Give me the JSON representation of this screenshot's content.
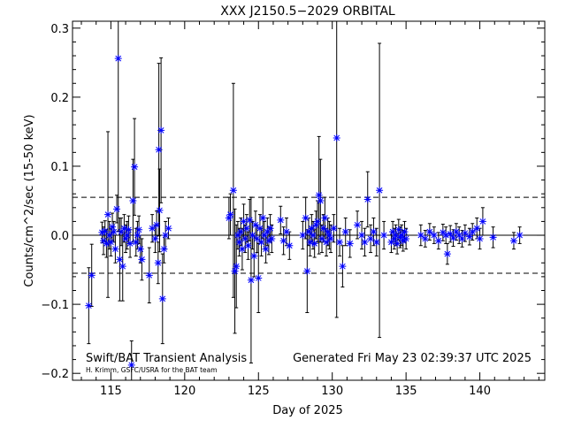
{
  "chart_data": {
    "type": "scatter",
    "title": "XXX J2150.5−2029 ORBITAL",
    "xlabel": "Day of 2025",
    "ylabel": "Counts/cm^2/sec (15-50 keV)",
    "xlim": [
      112.4,
      144.4
    ],
    "ylim": [
      -0.21,
      0.31
    ],
    "x_ticks": [
      115,
      120,
      125,
      130,
      135,
      140
    ],
    "y_ticks": [
      -0.2,
      -0.1,
      0.0,
      0.1,
      0.2,
      0.3
    ],
    "y_tick_labels": [
      "−0.2",
      "−0.1",
      "0.0",
      "0.1",
      "0.2",
      "0.3"
    ],
    "zero_line": 0.0,
    "threshold_lines": [
      0.055,
      -0.055
    ],
    "marker_color": "#0000ff",
    "errorbar_color": "#000000",
    "annotations": {
      "left": "Swift/BAT Transient Analysis",
      "credit": "H. Krimm, GSFC/USRA for the BAT team",
      "generated": "Generated Fri May 23 02:39:37 UTC 2025"
    },
    "series": [
      {
        "points": [
          {
            "x": 113.5,
            "y": -0.102,
            "err": 0.055
          },
          {
            "x": 113.7,
            "y": -0.058,
            "err": 0.045
          },
          {
            "x": 114.4,
            "y": 0.004,
            "err": 0.015
          },
          {
            "x": 114.5,
            "y": -0.008,
            "err": 0.02
          },
          {
            "x": 114.6,
            "y": 0.006,
            "err": 0.015
          },
          {
            "x": 114.7,
            "y": -0.012,
            "err": 0.02
          },
          {
            "x": 114.8,
            "y": 0.03,
            "err": 0.12
          },
          {
            "x": 114.9,
            "y": 0.0,
            "err": 0.02
          },
          {
            "x": 115.0,
            "y": -0.01,
            "err": 0.02
          },
          {
            "x": 115.1,
            "y": 0.012,
            "err": 0.02
          },
          {
            "x": 115.2,
            "y": 0.005,
            "err": 0.015
          },
          {
            "x": 115.3,
            "y": -0.02,
            "err": 0.02
          },
          {
            "x": 115.4,
            "y": 0.038,
            "err": 0.02
          },
          {
            "x": 115.5,
            "y": 0.256,
            "err": 0.25
          },
          {
            "x": 115.6,
            "y": -0.035,
            "err": 0.06
          },
          {
            "x": 115.7,
            "y": 0.005,
            "err": 0.02
          },
          {
            "x": 115.8,
            "y": -0.045,
            "err": 0.05
          },
          {
            "x": 115.9,
            "y": 0.01,
            "err": 0.02
          },
          {
            "x": 116.0,
            "y": -0.005,
            "err": 0.02
          },
          {
            "x": 116.1,
            "y": 0.0,
            "err": 0.02
          },
          {
            "x": 116.2,
            "y": 0.008,
            "err": 0.02
          },
          {
            "x": 116.3,
            "y": -0.012,
            "err": 0.02
          },
          {
            "x": 116.4,
            "y": -0.188,
            "err": 0.035
          },
          {
            "x": 116.5,
            "y": 0.05,
            "err": 0.06
          },
          {
            "x": 116.6,
            "y": 0.099,
            "err": 0.07
          },
          {
            "x": 116.7,
            "y": -0.01,
            "err": 0.02
          },
          {
            "x": 116.8,
            "y": 0.0,
            "err": 0.02
          },
          {
            "x": 116.9,
            "y": 0.008,
            "err": 0.02
          },
          {
            "x": 117.0,
            "y": -0.02,
            "err": 0.02
          },
          {
            "x": 117.1,
            "y": -0.035,
            "err": 0.03
          },
          {
            "x": 117.6,
            "y": -0.058,
            "err": 0.04
          },
          {
            "x": 117.8,
            "y": 0.01,
            "err": 0.02
          },
          {
            "x": 118.0,
            "y": -0.005,
            "err": 0.02
          },
          {
            "x": 118.1,
            "y": 0.015,
            "err": 0.02
          },
          {
            "x": 118.2,
            "y": -0.04,
            "err": 0.03
          },
          {
            "x": 118.25,
            "y": 0.124,
            "err": 0.125
          },
          {
            "x": 118.3,
            "y": 0.036,
            "err": 0.06
          },
          {
            "x": 118.4,
            "y": 0.152,
            "err": 0.105
          },
          {
            "x": 118.5,
            "y": -0.092,
            "err": 0.065
          },
          {
            "x": 118.6,
            "y": -0.02,
            "err": 0.02
          },
          {
            "x": 118.7,
            "y": 0.0,
            "err": 0.02
          },
          {
            "x": 118.9,
            "y": 0.01,
            "err": 0.015
          },
          {
            "x": 123.0,
            "y": 0.025,
            "err": 0.03
          },
          {
            "x": 123.1,
            "y": 0.03,
            "err": 0.03
          },
          {
            "x": 123.3,
            "y": 0.065,
            "err": 0.155
          },
          {
            "x": 123.4,
            "y": -0.052,
            "err": 0.09
          },
          {
            "x": 123.5,
            "y": -0.045,
            "err": 0.06
          },
          {
            "x": 123.6,
            "y": 0.0,
            "err": 0.02
          },
          {
            "x": 123.7,
            "y": -0.01,
            "err": 0.02
          },
          {
            "x": 123.8,
            "y": 0.005,
            "err": 0.02
          },
          {
            "x": 123.9,
            "y": -0.02,
            "err": 0.03
          },
          {
            "x": 124.0,
            "y": 0.02,
            "err": 0.025
          },
          {
            "x": 124.1,
            "y": -0.005,
            "err": 0.02
          },
          {
            "x": 124.2,
            "y": 0.01,
            "err": 0.02
          },
          {
            "x": 124.3,
            "y": -0.015,
            "err": 0.02
          },
          {
            "x": 124.4,
            "y": 0.022,
            "err": 0.03
          },
          {
            "x": 124.5,
            "y": -0.065,
            "err": 0.12
          },
          {
            "x": 124.6,
            "y": 0.0,
            "err": 0.02
          },
          {
            "x": 124.7,
            "y": -0.03,
            "err": 0.03
          },
          {
            "x": 124.8,
            "y": 0.015,
            "err": 0.02
          },
          {
            "x": 124.9,
            "y": -0.005,
            "err": 0.02
          },
          {
            "x": 125.0,
            "y": -0.062,
            "err": 0.05
          },
          {
            "x": 125.1,
            "y": 0.01,
            "err": 0.02
          },
          {
            "x": 125.2,
            "y": -0.01,
            "err": 0.02
          },
          {
            "x": 125.3,
            "y": 0.025,
            "err": 0.03
          },
          {
            "x": 125.4,
            "y": 0.0,
            "err": 0.02
          },
          {
            "x": 125.5,
            "y": -0.02,
            "err": 0.02
          },
          {
            "x": 125.6,
            "y": 0.005,
            "err": 0.02
          },
          {
            "x": 125.7,
            "y": -0.008,
            "err": 0.02
          },
          {
            "x": 125.8,
            "y": 0.01,
            "err": 0.02
          },
          {
            "x": 125.9,
            "y": -0.005,
            "err": 0.02
          },
          {
            "x": 126.5,
            "y": 0.022,
            "err": 0.02
          },
          {
            "x": 126.7,
            "y": -0.008,
            "err": 0.02
          },
          {
            "x": 126.9,
            "y": 0.005,
            "err": 0.02
          },
          {
            "x": 127.1,
            "y": -0.015,
            "err": 0.02
          },
          {
            "x": 128.0,
            "y": 0.0,
            "err": 0.02
          },
          {
            "x": 128.2,
            "y": 0.025,
            "err": 0.03
          },
          {
            "x": 128.3,
            "y": -0.052,
            "err": 0.06
          },
          {
            "x": 128.4,
            "y": 0.005,
            "err": 0.02
          },
          {
            "x": 128.5,
            "y": -0.01,
            "err": 0.02
          },
          {
            "x": 128.6,
            "y": 0.01,
            "err": 0.02
          },
          {
            "x": 128.7,
            "y": 0.0,
            "err": 0.02
          },
          {
            "x": 128.8,
            "y": -0.012,
            "err": 0.02
          },
          {
            "x": 128.9,
            "y": 0.015,
            "err": 0.02
          },
          {
            "x": 129.0,
            "y": 0.02,
            "err": 0.03
          },
          {
            "x": 129.1,
            "y": 0.058,
            "err": 0.085
          },
          {
            "x": 129.2,
            "y": 0.05,
            "err": 0.06
          },
          {
            "x": 129.3,
            "y": -0.005,
            "err": 0.02
          },
          {
            "x": 129.4,
            "y": 0.01,
            "err": 0.02
          },
          {
            "x": 129.5,
            "y": 0.025,
            "err": 0.03
          },
          {
            "x": 129.6,
            "y": -0.01,
            "err": 0.02
          },
          {
            "x": 129.7,
            "y": 0.005,
            "err": 0.02
          },
          {
            "x": 129.8,
            "y": 0.0,
            "err": 0.02
          },
          {
            "x": 129.9,
            "y": -0.005,
            "err": 0.02
          },
          {
            "x": 130.1,
            "y": 0.01,
            "err": 0.02
          },
          {
            "x": 130.3,
            "y": 0.141,
            "err": 0.26
          },
          {
            "x": 130.5,
            "y": -0.01,
            "err": 0.02
          },
          {
            "x": 130.7,
            "y": -0.045,
            "err": 0.03
          },
          {
            "x": 130.9,
            "y": 0.005,
            "err": 0.02
          },
          {
            "x": 131.2,
            "y": -0.012,
            "err": 0.02
          },
          {
            "x": 131.7,
            "y": 0.015,
            "err": 0.02
          },
          {
            "x": 132.0,
            "y": 0.0,
            "err": 0.02
          },
          {
            "x": 132.2,
            "y": -0.01,
            "err": 0.02
          },
          {
            "x": 132.4,
            "y": 0.052,
            "err": 0.04
          },
          {
            "x": 132.6,
            "y": -0.005,
            "err": 0.02
          },
          {
            "x": 132.8,
            "y": 0.005,
            "err": 0.02
          },
          {
            "x": 133.0,
            "y": -0.01,
            "err": 0.02
          },
          {
            "x": 133.2,
            "y": 0.065,
            "err": 0.213
          },
          {
            "x": 133.5,
            "y": 0.0,
            "err": 0.02
          },
          {
            "x": 134.0,
            "y": -0.01,
            "err": 0.015
          },
          {
            "x": 134.1,
            "y": 0.005,
            "err": 0.015
          },
          {
            "x": 134.2,
            "y": -0.005,
            "err": 0.015
          },
          {
            "x": 134.3,
            "y": 0.0,
            "err": 0.015
          },
          {
            "x": 134.4,
            "y": -0.012,
            "err": 0.015
          },
          {
            "x": 134.5,
            "y": 0.008,
            "err": 0.015
          },
          {
            "x": 134.6,
            "y": -0.003,
            "err": 0.015
          },
          {
            "x": 134.7,
            "y": 0.0,
            "err": 0.015
          },
          {
            "x": 134.8,
            "y": -0.008,
            "err": 0.015
          },
          {
            "x": 134.9,
            "y": 0.005,
            "err": 0.015
          },
          {
            "x": 135.0,
            "y": -0.005,
            "err": 0.015
          },
          {
            "x": 136.0,
            "y": 0.0,
            "err": 0.015
          },
          {
            "x": 136.3,
            "y": -0.005,
            "err": 0.012
          },
          {
            "x": 136.6,
            "y": 0.005,
            "err": 0.012
          },
          {
            "x": 136.9,
            "y": 0.0,
            "err": 0.012
          },
          {
            "x": 137.2,
            "y": -0.008,
            "err": 0.012
          },
          {
            "x": 137.5,
            "y": 0.004,
            "err": 0.012
          },
          {
            "x": 137.7,
            "y": 0.0,
            "err": 0.012
          },
          {
            "x": 137.8,
            "y": -0.027,
            "err": 0.015
          },
          {
            "x": 138.0,
            "y": 0.002,
            "err": 0.012
          },
          {
            "x": 138.2,
            "y": -0.004,
            "err": 0.012
          },
          {
            "x": 138.4,
            "y": 0.005,
            "err": 0.012
          },
          {
            "x": 138.6,
            "y": 0.0,
            "err": 0.012
          },
          {
            "x": 138.8,
            "y": -0.005,
            "err": 0.012
          },
          {
            "x": 139.0,
            "y": 0.003,
            "err": 0.012
          },
          {
            "x": 139.3,
            "y": -0.002,
            "err": 0.012
          },
          {
            "x": 139.5,
            "y": 0.005,
            "err": 0.012
          },
          {
            "x": 139.8,
            "y": 0.01,
            "err": 0.015
          },
          {
            "x": 140.0,
            "y": -0.005,
            "err": 0.015
          },
          {
            "x": 140.2,
            "y": 0.02,
            "err": 0.02
          },
          {
            "x": 140.9,
            "y": -0.003,
            "err": 0.015
          },
          {
            "x": 142.3,
            "y": -0.008,
            "err": 0.012
          },
          {
            "x": 142.7,
            "y": 0.0,
            "err": 0.012
          }
        ]
      }
    ]
  }
}
